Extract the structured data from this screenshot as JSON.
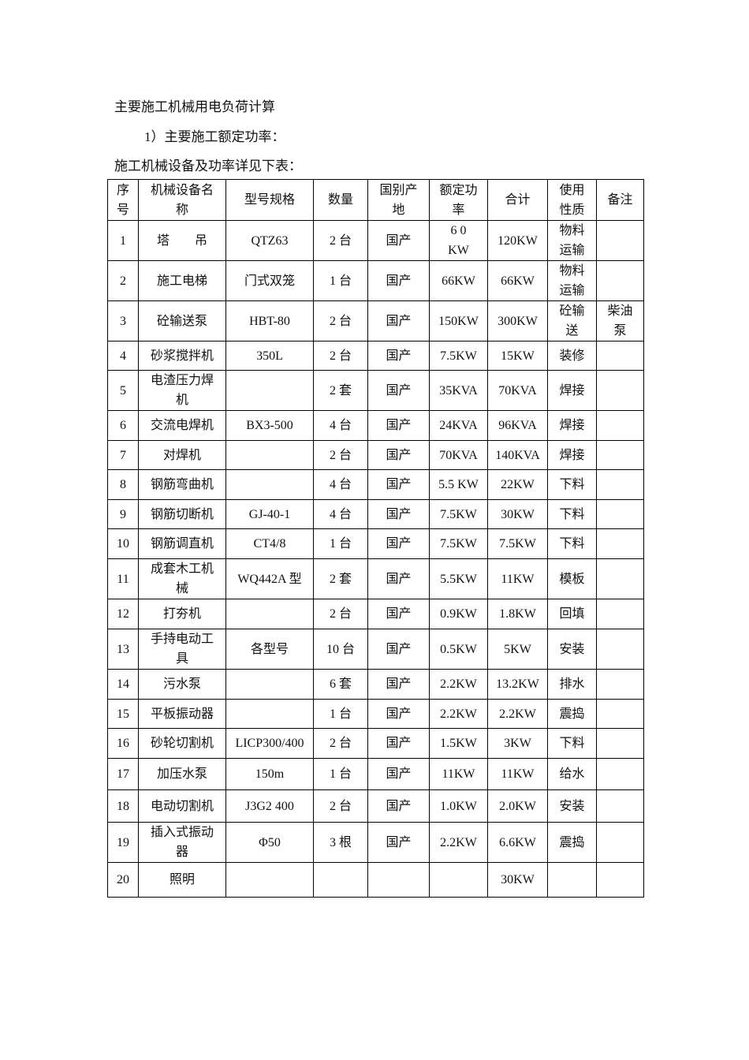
{
  "document": {
    "title": "主要施工机械用电负荷计算",
    "subtitle": "1）主要施工额定功率：",
    "intro": "施工机械设备及功率详见下表："
  },
  "table": {
    "headers": [
      "序号",
      "机械设备名称",
      "型号规格",
      "数量",
      "国别产地",
      "额定功率",
      "合计",
      "使用性质",
      "备注"
    ],
    "rows": [
      [
        "1",
        "塔　　吊",
        "QTZ63",
        "2 台",
        "国产",
        "6 0\nKW",
        "120KW",
        "物料运输",
        ""
      ],
      [
        "2",
        "施工电梯",
        "门式双笼",
        "1 台",
        "国产",
        "66KW",
        "66KW",
        "物料运输",
        ""
      ],
      [
        "3",
        "砼输送泵",
        "HBT-80",
        "2 台",
        "国产",
        "150KW",
        "300KW",
        "砼输送",
        "柴油泵"
      ],
      [
        "4",
        "砂浆搅拌机",
        "350L",
        "2 台",
        "国产",
        "7.5KW",
        "15KW",
        "装修",
        ""
      ],
      [
        "5",
        "电渣压力焊机",
        "",
        "2 套",
        "国产",
        "35KVA",
        "70KVA",
        "焊接",
        ""
      ],
      [
        "6",
        "交流电焊机",
        "BX3-500",
        "4 台",
        "国产",
        "24KVA",
        "96KVA",
        "焊接",
        ""
      ],
      [
        "7",
        "对焊机",
        "",
        "2 台",
        "国产",
        "70KVA",
        "140KVA",
        "焊接",
        ""
      ],
      [
        "8",
        "钢筋弯曲机",
        "",
        "4 台",
        "国产",
        "5.5 KW",
        "22KW",
        "下料",
        ""
      ],
      [
        "9",
        "钢筋切断机",
        "GJ-40-1",
        "4 台",
        "国产",
        "7.5KW",
        "30KW",
        "下料",
        ""
      ],
      [
        "10",
        "钢筋调直机",
        "CT4/8",
        "1 台",
        "国产",
        "7.5KW",
        "7.5KW",
        "下料",
        ""
      ],
      [
        "11",
        "成套木工机械",
        "WQ442A 型",
        "2 套",
        "国产",
        "5.5KW",
        "11KW",
        "模板",
        ""
      ],
      [
        "12",
        "打夯机",
        "",
        "2 台",
        "国产",
        "0.9KW",
        "1.8KW",
        "回填",
        ""
      ],
      [
        "13",
        "手持电动工具",
        "各型号",
        "10 台",
        "国产",
        "0.5KW",
        "5KW",
        "安装",
        ""
      ],
      [
        "14",
        "污水泵",
        "",
        "6 套",
        "国产",
        "2.2KW",
        "13.2KW",
        "排水",
        ""
      ],
      [
        "15",
        "平板振动器",
        "",
        "1 台",
        "国产",
        "2.2KW",
        "2.2KW",
        "震捣",
        ""
      ],
      [
        "16",
        "砂轮切割机",
        "LICP300/400",
        "2 台",
        "国产",
        "1.5KW",
        "3KW",
        "下料",
        ""
      ],
      [
        "17",
        "加压水泵",
        "150m",
        "1 台",
        "国产",
        "11KW",
        "11KW",
        "给水",
        ""
      ],
      [
        "18",
        "电动切割机",
        "J3G2 400",
        "2 台",
        "国产",
        "1.0KW",
        "2.0KW",
        "安装",
        ""
      ],
      [
        "19",
        "插入式振动器",
        "Φ50",
        "3 根",
        "国产",
        "2.2KW",
        "6.6KW",
        "震捣",
        ""
      ],
      [
        "20",
        "照明",
        "",
        "",
        "",
        "",
        "30KW",
        "",
        ""
      ]
    ]
  }
}
